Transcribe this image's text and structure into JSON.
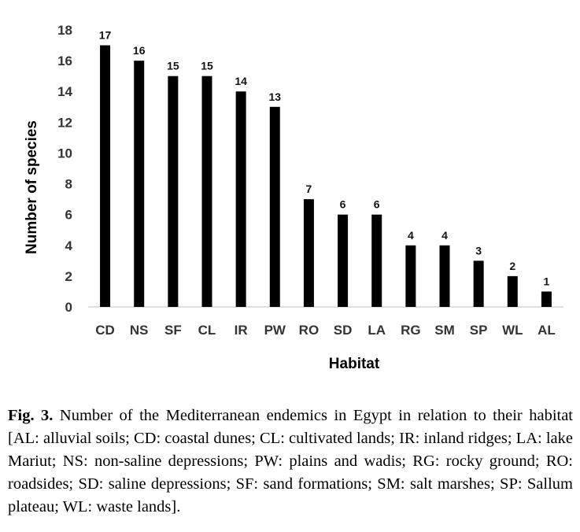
{
  "chart_data": {
    "type": "bar",
    "categories": [
      "CD",
      "NS",
      "SF",
      "CL",
      "IR",
      "PW",
      "RO",
      "SD",
      "LA",
      "RG",
      "SM",
      "SP",
      "WL",
      "AL"
    ],
    "values": [
      17,
      16,
      15,
      15,
      14,
      13,
      7,
      6,
      6,
      4,
      4,
      3,
      2,
      1
    ],
    "xlabel": "Habitat",
    "ylabel": "Number of species",
    "ylim": [
      0,
      18
    ],
    "yticks": [
      0,
      2,
      4,
      6,
      8,
      10,
      12,
      14,
      16,
      18
    ],
    "grid": false,
    "legend": "none",
    "bar_color": "#000000"
  },
  "caption": {
    "label": "Fig. 3.",
    "text": " Number of the Mediterranean endemics in Egypt in relation to their habitat [AL: alluvial soils; CD: coastal dunes; CL: cultivated lands; IR: inland ridges; LA: lake Mariut; NS: non-saline depressions; PW: plains and wadis; RG: rocky ground; RO: roadsides; SD: saline depressions; SF: sand formations; SM: salt marshes; SP: Sallum plateau; WL: waste lands]."
  }
}
